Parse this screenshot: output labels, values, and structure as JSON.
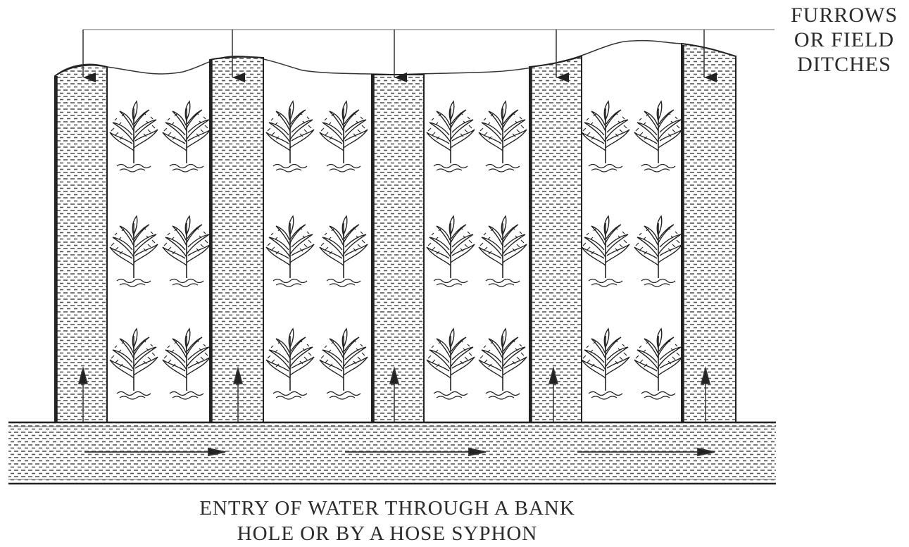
{
  "labels": {
    "furrows": [
      "FURROWS",
      "OR FIELD",
      "DITCHES"
    ],
    "entry": [
      "ENTRY OF WATER THROUGH A BANK",
      "HOLE OR BY A HOSE SYPHON"
    ]
  },
  "colors": {
    "line": "#2a2a2a",
    "water_dash": "#555555",
    "background": "#ffffff"
  },
  "icons": {
    "plant": "crop-plant-icon",
    "arrow": "flow-arrow-icon"
  }
}
